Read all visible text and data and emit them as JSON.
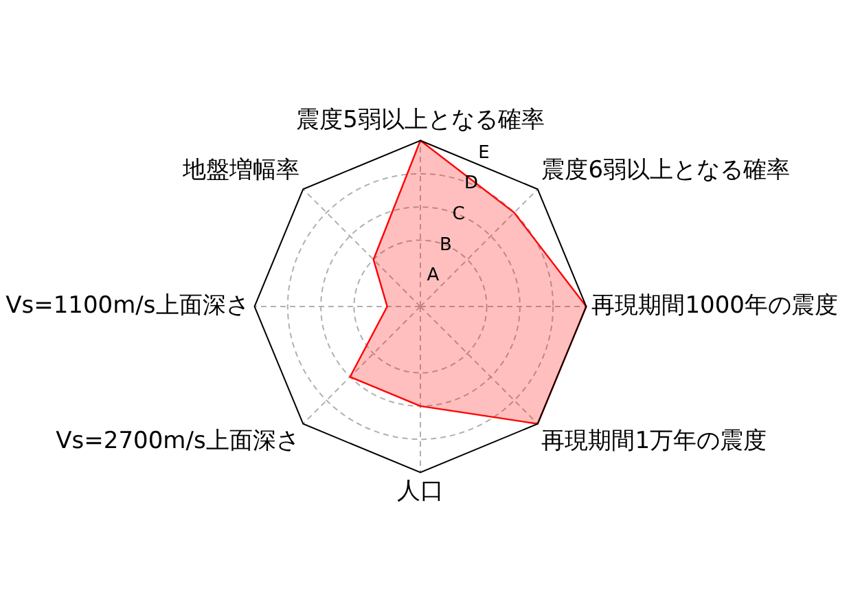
{
  "chart_data": {
    "type": "radar",
    "categories": [
      "震度5弱以上となる確率",
      "震度6弱以上となる確率",
      "再現期間1000年の震度",
      "再現期間1万年の震度",
      "人口",
      "Vs=2700m/s上面深さ",
      "Vs=1100m/s上面深さ",
      "地盤増幅率"
    ],
    "series": [
      {
        "color": "#ff0000",
        "values": [
          5,
          4,
          5,
          5,
          3,
          3,
          1,
          2
        ]
      }
    ],
    "ylim": [
      0,
      5
    ],
    "yticks": [
      {
        "value": 1,
        "label": "A"
      },
      {
        "value": 2,
        "label": "B"
      },
      {
        "value": 3,
        "label": "C"
      },
      {
        "value": 4,
        "label": "D"
      },
      {
        "value": 5,
        "label": "E"
      }
    ],
    "grid": true,
    "legend": false,
    "marker": "none",
    "line_style": "solid"
  }
}
